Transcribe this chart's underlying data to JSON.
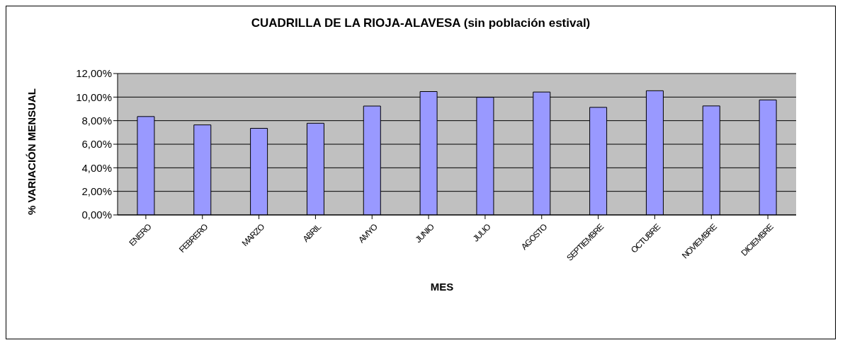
{
  "chart_data": {
    "type": "bar",
    "title": "CUADRILLA DE LA RIOJA-ALAVESA (sin población estival)",
    "xlabel": "MES",
    "ylabel": "% VARIACIÓN MENSUAL",
    "categories": [
      "ENERO",
      "FEBRERO",
      "MARZO",
      "ABRIL",
      "AMYO",
      "JUNIO",
      "JULIO",
      "AGOSTO",
      "SEPTIEMBRE",
      "OCTUBRE",
      "NOVIEMBRE",
      "DICIEMBRE"
    ],
    "values": [
      8.35,
      7.64,
      7.35,
      7.78,
      9.24,
      10.47,
      9.98,
      10.43,
      9.13,
      10.54,
      9.25,
      9.76
    ],
    "color": "#9999ff",
    "ylim": [
      0,
      12
    ],
    "yticks": [
      {
        "value": 0,
        "label": "0,00%"
      },
      {
        "value": 2,
        "label": "2,00%"
      },
      {
        "value": 4,
        "label": "4,00%"
      },
      {
        "value": 6,
        "label": "6,00%"
      },
      {
        "value": 8,
        "label": "8,00%"
      },
      {
        "value": 10,
        "label": "10,00%"
      },
      {
        "value": 12,
        "label": "12,00%"
      }
    ],
    "grid": "y"
  }
}
